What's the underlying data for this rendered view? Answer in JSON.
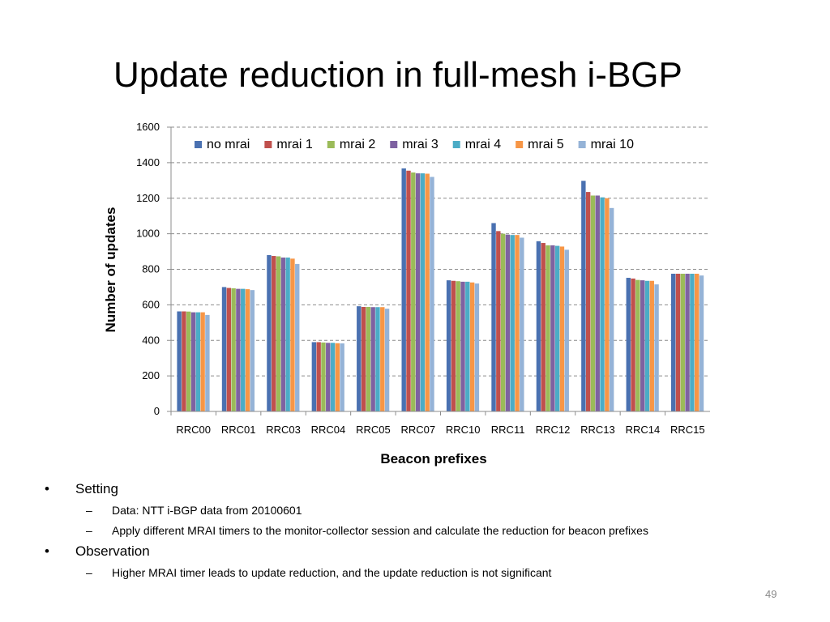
{
  "slide": {
    "title": "Update reduction in full-mesh i-BGP",
    "page_number": "49"
  },
  "bullets": [
    {
      "level": 1,
      "marker": "•",
      "text": "Setting"
    },
    {
      "level": 2,
      "marker": "–",
      "text": "Data: NTT i-BGP data from 20100601"
    },
    {
      "level": 2,
      "marker": "–",
      "text": "Apply different MRAI timers to the monitor-collector session and calculate the reduction for beacon prefixes"
    },
    {
      "level": 1,
      "marker": "•",
      "text": "Observation"
    },
    {
      "level": 2,
      "marker": "–",
      "text": "Higher MRAI timer leads to update reduction, and the update reduction is not significant"
    }
  ],
  "chart_data": {
    "type": "bar",
    "title": "",
    "xlabel": "Beacon prefixes",
    "ylabel": "Number of updates",
    "ylim": [
      0,
      1600
    ],
    "yticks": [
      0,
      200,
      400,
      600,
      800,
      1000,
      1200,
      1400,
      1600
    ],
    "grid": true,
    "legend_position": "top",
    "categories": [
      "RRC00",
      "RRC01",
      "RRC03",
      "RRC04",
      "RRC05",
      "RRC07",
      "RRC10",
      "RRC11",
      "RRC12",
      "RRC13",
      "RRC14",
      "RRC15"
    ],
    "series": [
      {
        "name": "no mrai",
        "color": "#4a71b1",
        "values": [
          563,
          700,
          880,
          390,
          592,
          1368,
          738,
          1060,
          958,
          1298,
          752,
          775
        ]
      },
      {
        "name": "mrai 1",
        "color": "#c0504d",
        "values": [
          563,
          695,
          875,
          390,
          588,
          1355,
          735,
          1015,
          948,
          1235,
          748,
          775
        ]
      },
      {
        "name": "mrai 2",
        "color": "#9bbb59",
        "values": [
          562,
          693,
          873,
          388,
          588,
          1345,
          733,
          1000,
          935,
          1215,
          740,
          775
        ]
      },
      {
        "name": "mrai 3",
        "color": "#7e62a1",
        "values": [
          558,
          690,
          866,
          386,
          587,
          1340,
          730,
          995,
          935,
          1215,
          738,
          775
        ]
      },
      {
        "name": "mrai 4",
        "color": "#4bacc6",
        "values": [
          558,
          690,
          866,
          386,
          587,
          1340,
          730,
          993,
          932,
          1205,
          735,
          775
        ]
      },
      {
        "name": "mrai 5",
        "color": "#f79646",
        "values": [
          558,
          688,
          860,
          384,
          587,
          1338,
          726,
          993,
          928,
          1200,
          735,
          775
        ]
      },
      {
        "name": "mrai 10",
        "color": "#95b3d7",
        "values": [
          543,
          683,
          830,
          383,
          578,
          1320,
          720,
          978,
          910,
          1145,
          715,
          765
        ]
      }
    ]
  }
}
